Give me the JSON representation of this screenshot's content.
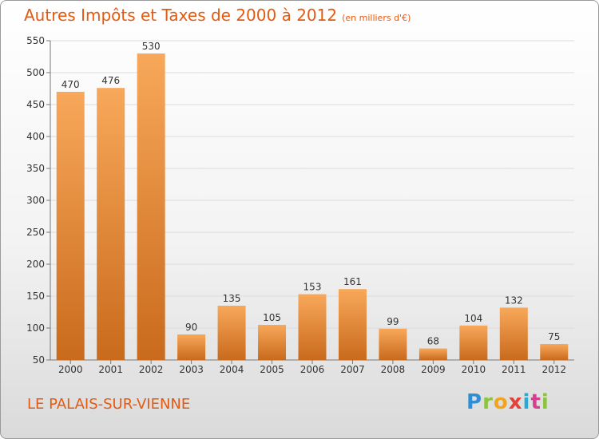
{
  "header": {
    "title": "Autres Impôts et Taxes de 2000 à 2012",
    "subtitle": "(en milliers d'€)"
  },
  "footer": {
    "city": "LE PALAIS-SUR-VIENNE",
    "logo_text": "Proxiti",
    "logo_letters": [
      "P",
      "r",
      "o",
      "x",
      "i",
      "t",
      "i"
    ]
  },
  "colors": {
    "title": "#e45a10",
    "bar_top": "#f8a85a",
    "bar_bottom": "#c96a1c"
  },
  "chart_data": {
    "type": "bar",
    "title": "Autres Impôts et Taxes de 2000 à 2012",
    "subtitle": "(en milliers d'€)",
    "categories": [
      "2000",
      "2001",
      "2002",
      "2003",
      "2004",
      "2005",
      "2006",
      "2007",
      "2008",
      "2009",
      "2010",
      "2011",
      "2012"
    ],
    "values": [
      470,
      476,
      530,
      90,
      135,
      105,
      153,
      161,
      99,
      68,
      104,
      132,
      75
    ],
    "data_labels": [
      "470",
      "476",
      "530",
      "90",
      "135",
      "105",
      "153",
      "161",
      "99",
      "68",
      "104",
      "132",
      "75"
    ],
    "ylim": [
      50,
      550
    ],
    "yticks": [
      50,
      100,
      150,
      200,
      250,
      300,
      350,
      400,
      450,
      500,
      550
    ],
    "ytick_labels": [
      "50",
      "100",
      "150",
      "200",
      "250",
      "300",
      "350",
      "400",
      "450",
      "500",
      "550"
    ],
    "xlabel": "",
    "ylabel": "",
    "grid": true
  }
}
